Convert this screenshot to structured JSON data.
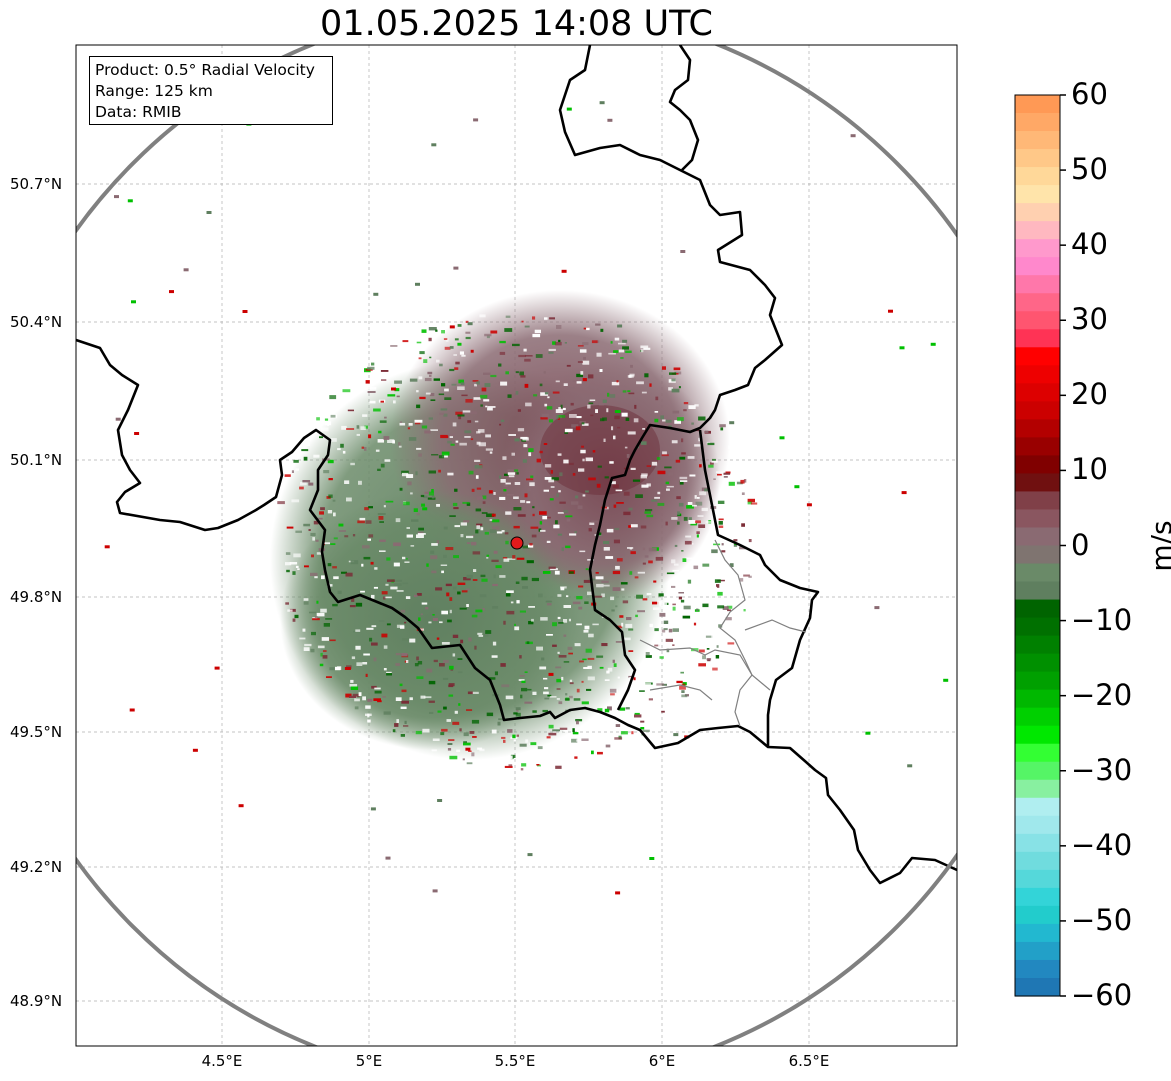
{
  "title": "01.05.2025 14:08 UTC",
  "info": {
    "product": "Product: 0.5° Radial Velocity",
    "range": "Range: 125 km",
    "data": "Data: RMIB"
  },
  "lat_labels": [
    "50.7°N",
    "50.4°N",
    "50.1°N",
    "49.8°N",
    "49.5°N",
    "49.2°N",
    "48.9°N"
  ],
  "lon_labels": [
    "4.5°E",
    "5°E",
    "5.5°E",
    "6°E",
    "6.5°E"
  ],
  "colorbar": {
    "unit": "m/s",
    "ticks": [
      "60",
      "50",
      "40",
      "30",
      "20",
      "10",
      "0",
      "−10",
      "−20",
      "−30",
      "−40",
      "−50",
      "−60"
    ],
    "min": -60,
    "max": 60
  },
  "colors": {
    "range_ring": "#808080",
    "border": "#000000",
    "radar_site": "#e31a1c",
    "velocity_inbound": "#5f7f5f",
    "velocity_outbound": "#8a6a72"
  }
}
